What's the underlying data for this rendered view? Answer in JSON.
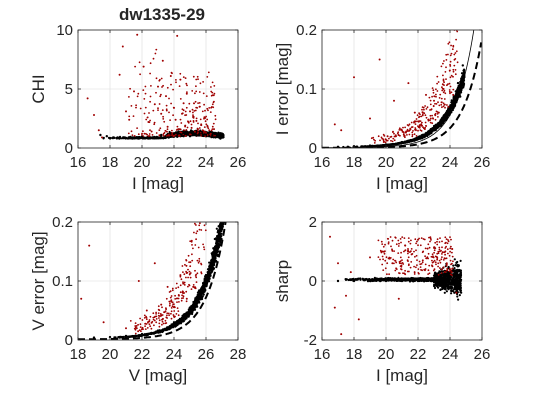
{
  "figure": {
    "title": "dw1335-29",
    "background": "#ffffff"
  },
  "colors": {
    "black_points": "#000000",
    "red_points": "#a00000",
    "grid": "#dcdcdc",
    "axis": "#262626"
  },
  "chart_data": [
    {
      "type": "scatter",
      "id": "chi",
      "title": "dw1335-29",
      "xlabel": "I [mag]",
      "ylabel": "CHI",
      "xlim": [
        16,
        26
      ],
      "ylim": [
        0,
        10
      ],
      "xticks": [
        16,
        18,
        20,
        22,
        24,
        26
      ],
      "yticks": [
        0,
        5,
        10
      ],
      "grid": true,
      "series": [
        {
          "color": "black",
          "description_points": [
            [
              18.2,
              0.9
            ],
            [
              18.6,
              0.85
            ],
            [
              19.0,
              0.85
            ],
            [
              19.4,
              0.8
            ],
            [
              19.8,
              0.8
            ],
            [
              20.2,
              0.85
            ],
            [
              20.6,
              0.85
            ],
            [
              21.0,
              0.9
            ],
            [
              21.4,
              0.9
            ],
            [
              21.8,
              0.95
            ],
            [
              22.2,
              0.95
            ],
            [
              22.6,
              1.0
            ],
            [
              23.0,
              1.0
            ],
            [
              23.4,
              1.05
            ],
            [
              23.8,
              1.05
            ],
            [
              24.2,
              1.0
            ],
            [
              24.6,
              0.9
            ],
            [
              24.9,
              0.8
            ],
            [
              21.2,
              1.1
            ],
            [
              22.0,
              1.2
            ],
            [
              22.8,
              1.2
            ],
            [
              23.2,
              1.3
            ],
            [
              23.6,
              1.2
            ],
            [
              24.0,
              1.15
            ],
            [
              24.4,
              1.1
            ],
            [
              20.0,
              0.95
            ],
            [
              19.2,
              0.9
            ],
            [
              17.8,
              1.0
            ],
            [
              17.4,
              1.1
            ]
          ]
        },
        {
          "color": "red",
          "description_points": [
            [
              16.6,
              4.2
            ],
            [
              17.0,
              2.8
            ],
            [
              17.3,
              1.5
            ],
            [
              17.5,
              0.9
            ],
            [
              18.6,
              6.2
            ],
            [
              18.8,
              8.6
            ],
            [
              19.0,
              3.1
            ],
            [
              19.2,
              2.4
            ],
            [
              19.5,
              4.8
            ],
            [
              19.7,
              9.6
            ],
            [
              20.1,
              6.9
            ],
            [
              20.4,
              2.2
            ],
            [
              20.6,
              1.4
            ],
            [
              20.8,
              3.7
            ],
            [
              21.0,
              5.2
            ],
            [
              21.2,
              2.9
            ],
            [
              21.3,
              7.4
            ],
            [
              21.5,
              4.4
            ],
            [
              21.6,
              1.8
            ],
            [
              21.8,
              6.1
            ],
            [
              22.0,
              3.4
            ],
            [
              22.1,
              2.4
            ],
            [
              22.2,
              9.5
            ],
            [
              22.3,
              1.6
            ],
            [
              22.4,
              5.8
            ],
            [
              22.5,
              2.9
            ],
            [
              22.6,
              3.8
            ],
            [
              22.7,
              1.9
            ],
            [
              22.8,
              4.6
            ],
            [
              22.9,
              2.2
            ],
            [
              23.0,
              3.1
            ],
            [
              23.1,
              1.7
            ],
            [
              23.2,
              2.6
            ],
            [
              23.3,
              1.4
            ],
            [
              23.4,
              2.3
            ],
            [
              23.5,
              1.6
            ],
            [
              23.6,
              3.5
            ],
            [
              23.7,
              2.0
            ],
            [
              23.8,
              1.5
            ],
            [
              23.9,
              2.6
            ],
            [
              24.0,
              1.3
            ],
            [
              24.1,
              1.8
            ],
            [
              24.3,
              1.2
            ],
            [
              24.5,
              1.6
            ]
          ]
        }
      ]
    },
    {
      "type": "scatter",
      "id": "ierr",
      "xlabel": "I [mag]",
      "ylabel": "I error [mag]",
      "xlim": [
        16,
        26
      ],
      "ylim": [
        0,
        0.2
      ],
      "xticks": [
        16,
        18,
        20,
        22,
        24,
        26
      ],
      "yticks": [
        0,
        0.1,
        0.2
      ],
      "grid": true,
      "curves": [
        "solid model curve",
        "dashed model curve"
      ],
      "series": [
        {
          "color": "black",
          "description_points": [
            [
              17,
              0.002
            ],
            [
              18,
              0.003
            ],
            [
              19,
              0.004
            ],
            [
              20,
              0.006
            ],
            [
              21,
              0.01
            ],
            [
              22,
              0.018
            ],
            [
              23,
              0.035
            ],
            [
              23.5,
              0.05
            ],
            [
              24,
              0.07
            ],
            [
              24.5,
              0.11
            ],
            [
              24.8,
              0.14
            ]
          ]
        },
        {
          "color": "red",
          "description_points": [
            [
              16.8,
              0.04
            ],
            [
              17.2,
              0.03
            ],
            [
              18.0,
              0.12
            ],
            [
              19.0,
              0.05
            ],
            [
              19.6,
              0.15
            ],
            [
              20.1,
              0.02
            ],
            [
              20.5,
              0.08
            ],
            [
              21.0,
              0.03
            ],
            [
              21.4,
              0.11
            ],
            [
              21.8,
              0.06
            ],
            [
              22.2,
              0.04
            ],
            [
              22.5,
              0.09
            ],
            [
              22.8,
              0.05
            ],
            [
              23.0,
              0.08
            ],
            [
              23.3,
              0.06
            ],
            [
              23.6,
              0.1
            ],
            [
              23.9,
              0.07
            ],
            [
              24.2,
              0.09
            ]
          ]
        }
      ]
    },
    {
      "type": "scatter",
      "id": "verr",
      "xlabel": "V [mag]",
      "ylabel": "V error [mag]",
      "xlim": [
        18,
        28
      ],
      "ylim": [
        0,
        0.2
      ],
      "xticks": [
        18,
        20,
        22,
        24,
        26,
        28
      ],
      "yticks": [
        0,
        0.1,
        0.2
      ],
      "grid": true,
      "curves": [
        "dashed model curve"
      ],
      "series": [
        {
          "color": "black",
          "description_points": [
            [
              19,
              0.004
            ],
            [
              20,
              0.005
            ],
            [
              21,
              0.007
            ],
            [
              22,
              0.01
            ],
            [
              23,
              0.016
            ],
            [
              24,
              0.03
            ],
            [
              25,
              0.055
            ],
            [
              25.5,
              0.08
            ],
            [
              26,
              0.11
            ],
            [
              26.5,
              0.15
            ],
            [
              26.9,
              0.19
            ]
          ]
        },
        {
          "color": "red",
          "description_points": [
            [
              18.2,
              0.07
            ],
            [
              18.7,
              0.16
            ],
            [
              19.6,
              0.03
            ],
            [
              21.0,
              0.02
            ],
            [
              21.8,
              0.1
            ],
            [
              22.3,
              0.05
            ],
            [
              22.8,
              0.13
            ],
            [
              23.2,
              0.06
            ],
            [
              23.6,
              0.09
            ],
            [
              24.0,
              0.04
            ],
            [
              24.4,
              0.11
            ],
            [
              24.8,
              0.07
            ],
            [
              25.2,
              0.09
            ]
          ]
        }
      ]
    },
    {
      "type": "scatter",
      "id": "sharp",
      "xlabel": "I [mag]",
      "ylabel": "sharp",
      "xlim": [
        16,
        26
      ],
      "ylim": [
        -2,
        2
      ],
      "xticks": [
        16,
        18,
        20,
        22,
        24,
        26
      ],
      "yticks": [
        -2,
        0,
        2
      ],
      "grid": true,
      "series": [
        {
          "color": "black",
          "description_points": [
            [
              17,
              0.0
            ],
            [
              18,
              0.0
            ],
            [
              19,
              0.0
            ],
            [
              20,
              0.0
            ],
            [
              21,
              0.0
            ],
            [
              22,
              0.0
            ],
            [
              23,
              0.0
            ],
            [
              23.5,
              0.1
            ],
            [
              24,
              0.1
            ],
            [
              24.5,
              0.1
            ]
          ]
        },
        {
          "color": "red",
          "description_points": [
            [
              16.5,
              1.5
            ],
            [
              16.8,
              -0.9
            ],
            [
              17.0,
              0.6
            ],
            [
              17.2,
              -1.8
            ],
            [
              17.5,
              -0.5
            ],
            [
              17.8,
              0.3
            ],
            [
              18.3,
              -1.3
            ],
            [
              19.0,
              0.8
            ],
            [
              19.8,
              1.0
            ],
            [
              20.4,
              0.6
            ],
            [
              20.8,
              -0.6
            ],
            [
              21.2,
              1.2
            ],
            [
              21.6,
              0.9
            ],
            [
              22.0,
              1.4
            ],
            [
              22.3,
              0.7
            ],
            [
              22.6,
              1.1
            ],
            [
              22.9,
              0.5
            ],
            [
              23.2,
              0.8
            ],
            [
              23.5,
              0.4
            ],
            [
              23.8,
              0.6
            ],
            [
              24.1,
              0.3
            ],
            [
              24.4,
              -0.4
            ]
          ]
        }
      ]
    }
  ]
}
